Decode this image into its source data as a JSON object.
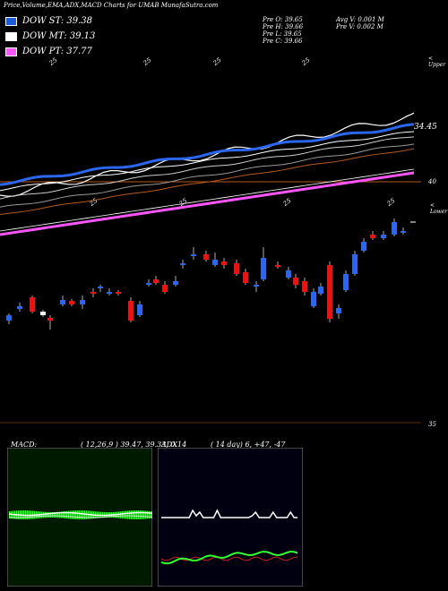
{
  "header": {
    "title": "Price,Volume,EMA,ADX,MACD Charts for UMAB MunafaSutra.com"
  },
  "legend": [
    {
      "label": "DOW ST: 39.38",
      "color": "#1a5dd9"
    },
    {
      "label": "DOW MT: 39.13",
      "color": "#ffffff"
    },
    {
      "label": "DOW PT: 37.77",
      "color": "#ff55ff"
    }
  ],
  "stats": {
    "open": "Pre  O: 39.65",
    "high": "Pre  H: 39.66",
    "low": "Pre  L: 39.65",
    "close": "Pre  C: 39.66",
    "avg_volume": "Avg V: 0.001  M",
    "volume": "Pre  V: 0.002  M"
  },
  "chart_labels": {
    "upper": "< Upper",
    "lower": "< Lower",
    "ema_value": "34.45",
    "level_40": "40",
    "level_35": "35",
    "date_marks_top": [
      "25",
      "25",
      "25",
      "25"
    ],
    "date_marks_mid": [
      "25",
      "25",
      "25",
      "25"
    ]
  },
  "macd": {
    "label": "MACD:",
    "values": "( 12,26,9 ) 39.47,  39.33,  0.14"
  },
  "adx": {
    "label": "ADX",
    "values": "( 14  day) 6,  +47,  -47"
  },
  "chart_data": [
    {
      "type": "candlestick",
      "title": "Price,Volume,EMA,ADX,MACD Charts for UMAB MunafaSutra.com",
      "series": [
        {
          "name": "DOW ST",
          "last": 39.38
        },
        {
          "name": "DOW MT",
          "last": 39.13
        },
        {
          "name": "DOW PT",
          "last": 37.77
        }
      ],
      "levels": [
        40,
        35,
        34.45
      ],
      "last_bar": {
        "open": 39.65,
        "high": 39.66,
        "low": 39.65,
        "close": 39.66
      }
    },
    {
      "type": "line",
      "title": "MACD",
      "params": [
        12,
        26,
        9
      ],
      "values": {
        "macd": 39.47,
        "signal": 39.33,
        "histogram": 0.14
      }
    },
    {
      "type": "line",
      "title": "ADX",
      "params": [
        14
      ],
      "values": {
        "adx": 6,
        "plus_di": 47,
        "minus_di": -47
      }
    }
  ]
}
